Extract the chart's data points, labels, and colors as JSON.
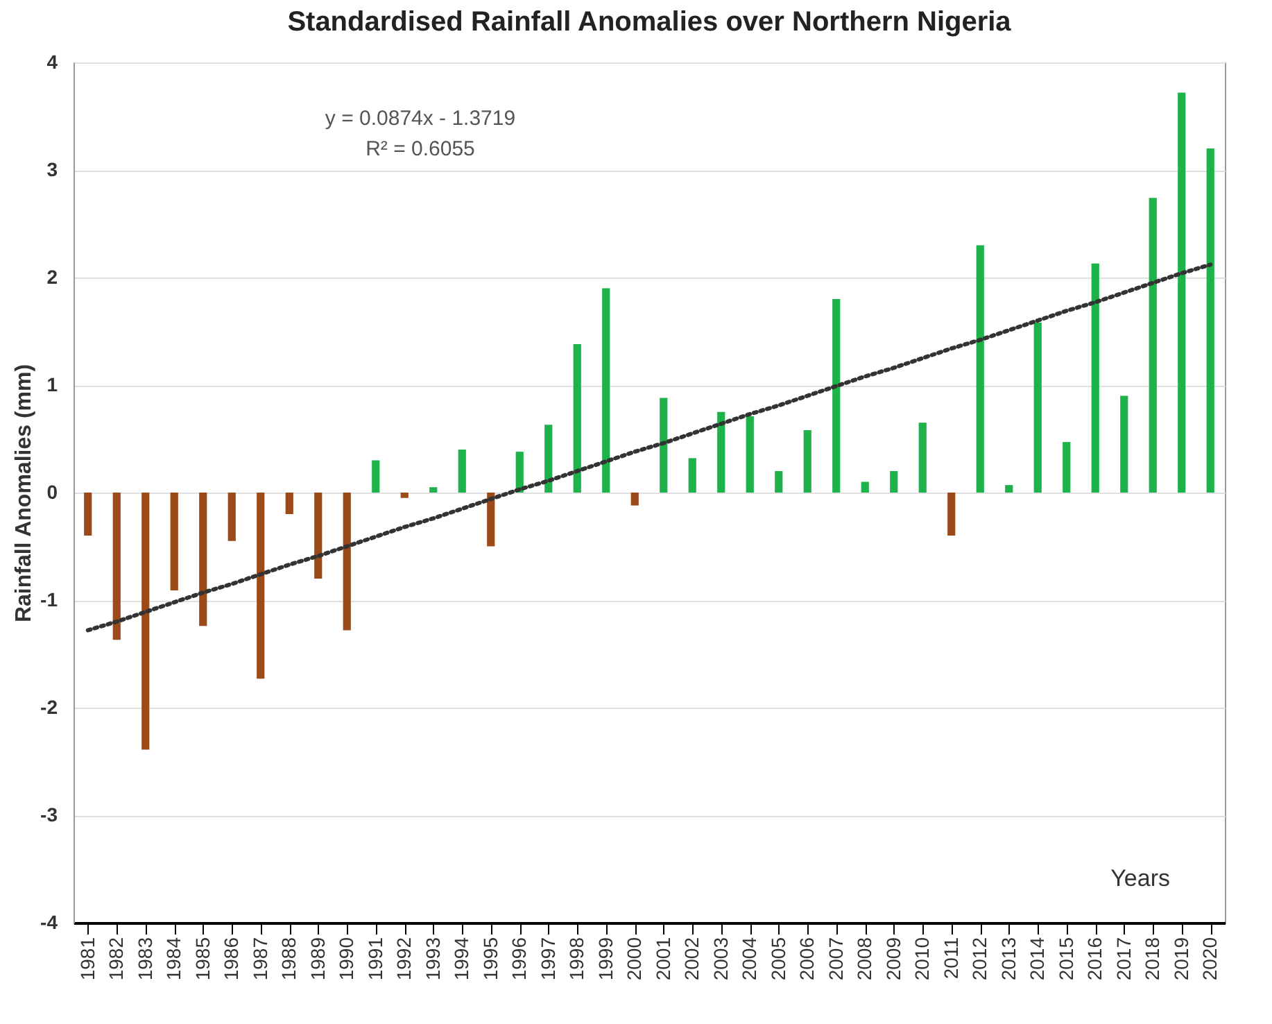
{
  "chart_data": {
    "type": "bar",
    "title": "Standardised Rainfall Anomalies over Northern Nigeria",
    "xlabel": "Years",
    "ylabel": "Rainfall Anomalies (mm)",
    "categories": [
      "1981",
      "1982",
      "1983",
      "1984",
      "1985",
      "1986",
      "1987",
      "1988",
      "1989",
      "1990",
      "1991",
      "1992",
      "1993",
      "1994",
      "1995",
      "1996",
      "1997",
      "1998",
      "1999",
      "2000",
      "2001",
      "2002",
      "2003",
      "2004",
      "2005",
      "2006",
      "2007",
      "2008",
      "2009",
      "2010",
      "2011",
      "2012",
      "2013",
      "2014",
      "2015",
      "2016",
      "2017",
      "2018",
      "2019",
      "2020"
    ],
    "series": [
      {
        "values": [
          -0.4,
          -1.37,
          -2.39,
          -0.91,
          -1.24,
          -0.45,
          -1.73,
          -0.2,
          -0.8,
          -1.28,
          0.3,
          -0.05,
          0.05,
          0.4,
          -0.5,
          0.38,
          0.63,
          1.38,
          1.9,
          -0.12,
          0.88,
          0.32,
          0.75,
          0.71,
          0.2,
          0.58,
          1.8,
          0.1,
          0.2,
          0.65,
          -0.4,
          2.3,
          0.07,
          1.58,
          0.47,
          2.13,
          0.9,
          2.74,
          3.72,
          3.2
        ],
        "colors": [
          "#9c4a1a",
          "#9c4a1a",
          "#9c4a1a",
          "#9c4a1a",
          "#9c4a1a",
          "#9c4a1a",
          "#9c4a1a",
          "#9c4a1a",
          "#9c4a1a",
          "#9c4a1a",
          "#1db34a",
          "#9c4a1a",
          "#1db34a",
          "#1db34a",
          "#9c4a1a",
          "#1db34a",
          "#1db34a",
          "#1db34a",
          "#1db34a",
          "#9c4a1a",
          "#1db34a",
          "#1db34a",
          "#1db34a",
          "#1db34a",
          "#1db34a",
          "#1db34a",
          "#1db34a",
          "#1db34a",
          "#1db34a",
          "#1db34a",
          "#9c4a1a",
          "#1db34a",
          "#1db34a",
          "#1db34a",
          "#1db34a",
          "#1db34a",
          "#1db34a",
          "#1db34a",
          "#1db34a",
          "#1db34a"
        ]
      },
      {
        "type": "line",
        "values": [
          -1.28,
          -1.2,
          -1.11,
          -1.02,
          -0.93,
          -0.85,
          -0.76,
          -0.67,
          -0.59,
          -0.5,
          -0.41,
          -0.32,
          -0.24,
          -0.15,
          -0.06,
          0.03,
          0.11,
          0.2,
          0.29,
          0.38,
          0.46,
          0.55,
          0.64,
          0.73,
          0.81,
          0.9,
          0.99,
          1.08,
          1.16,
          1.25,
          1.34,
          1.42,
          1.51,
          1.6,
          1.69,
          1.77,
          1.86,
          1.95,
          2.04,
          2.12
        ],
        "color": "#333333",
        "line_style": "dotted"
      }
    ],
    "ylim": [
      -4,
      4
    ],
    "yticks": [
      -4,
      -3,
      -2,
      -1,
      0,
      1,
      2,
      3,
      4
    ],
    "grid": "y",
    "annotations": [
      "y = 0.0874x - 1.3719",
      "R² = 0.6055"
    ]
  }
}
